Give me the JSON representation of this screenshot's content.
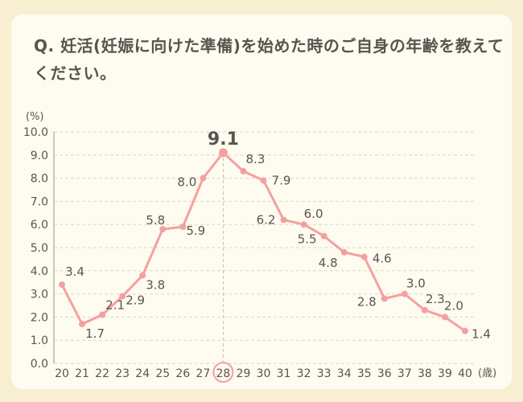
{
  "question": "Q. 妊活(妊娠に向けた準備)を始めた時のご自身の年齢を教えてください。",
  "colors": {
    "background": "#f8efd3",
    "card": "#fefbf0",
    "line": "#f4a0a0",
    "grid": "#dfd7c4",
    "text": "#5a5450"
  },
  "chart_data": {
    "type": "line",
    "y_unit": "(%)",
    "x_unit": "(歳)",
    "ylim": [
      0,
      10
    ],
    "yticks": [
      "0.0",
      "1.0",
      "2.0",
      "3.0",
      "4.0",
      "5.0",
      "6.0",
      "7.0",
      "8.0",
      "9.0",
      "10.0"
    ],
    "x": [
      20,
      21,
      22,
      23,
      24,
      25,
      26,
      27,
      28,
      29,
      30,
      31,
      32,
      33,
      34,
      35,
      36,
      37,
      38,
      39,
      40
    ],
    "values": [
      3.4,
      1.7,
      2.1,
      2.9,
      3.8,
      5.8,
      5.9,
      8.0,
      9.1,
      8.3,
      7.9,
      6.2,
      6.0,
      5.5,
      4.8,
      4.6,
      2.8,
      3.0,
      2.3,
      2.0,
      1.4
    ],
    "peak_x": 28,
    "grid": "horizontal-dashed"
  }
}
